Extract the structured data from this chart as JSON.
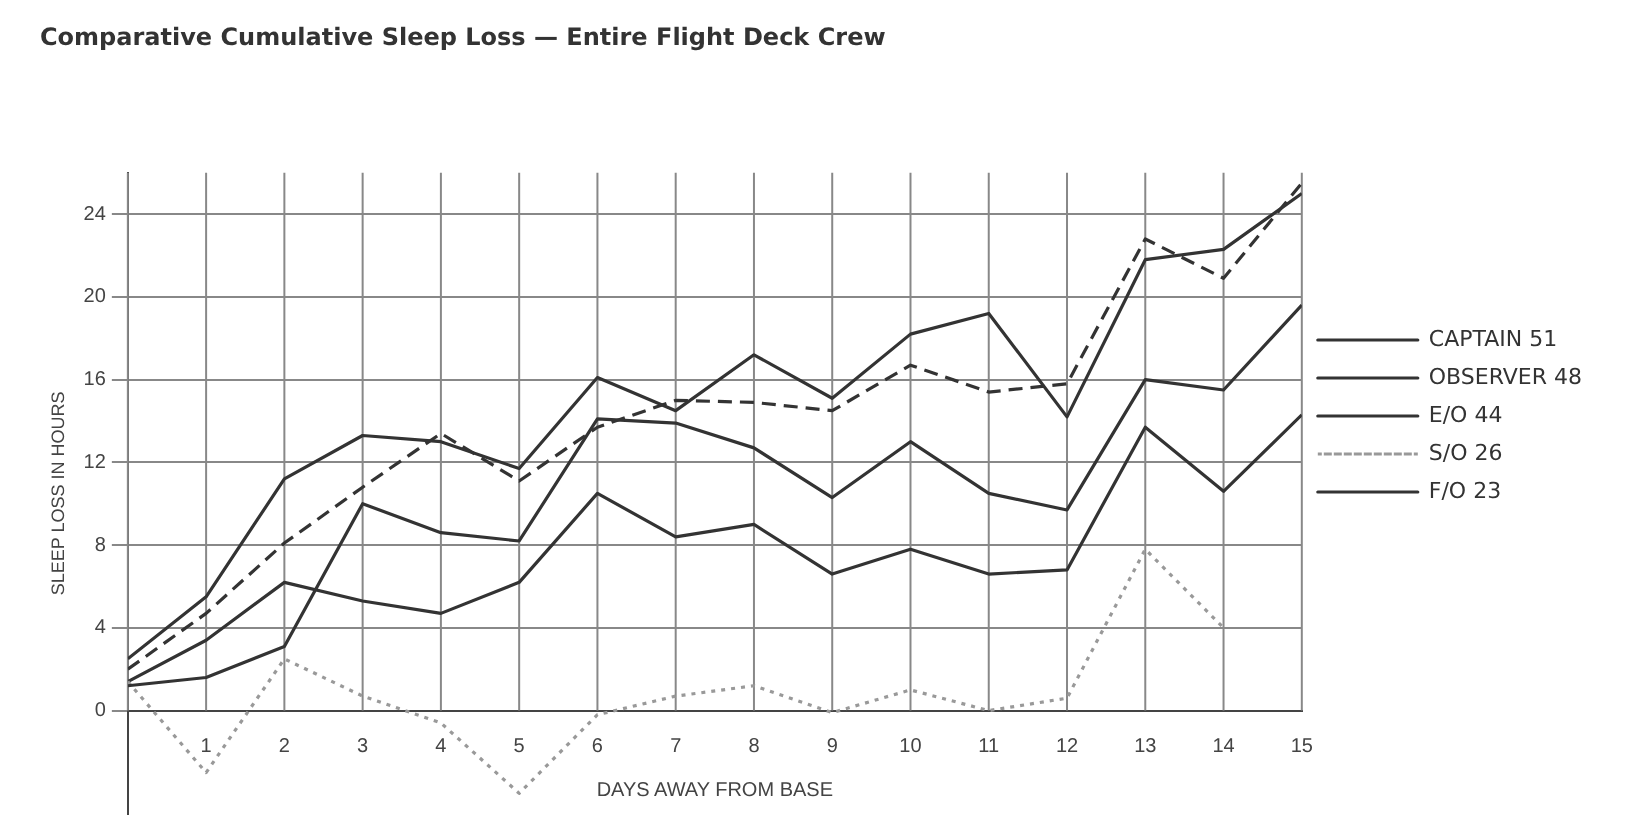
{
  "chart_data": {
    "type": "line",
    "title": "Comparative Cumulative Sleep Loss — Entire Flight Deck Crew",
    "xlabel": "DAYS AWAY FROM BASE",
    "ylabel": "SLEEP LOSS IN HOURS",
    "x": [
      0,
      1,
      2,
      3,
      4,
      5,
      6,
      7,
      8,
      9,
      10,
      11,
      12,
      13,
      14,
      15
    ],
    "xlim": [
      0,
      15
    ],
    "xticks": [
      {
        "value": 0,
        "label": null
      },
      1,
      2,
      3,
      4,
      5,
      6,
      7,
      8,
      9,
      10,
      11,
      12,
      13,
      14,
      15
    ],
    "ylim": [
      -5,
      26
    ],
    "yticks": [
      0,
      4,
      8,
      12,
      16,
      20,
      24
    ],
    "grid": true,
    "legend": "right",
    "marker": "none",
    "series": [
      {
        "name": "CAPTAIN 51",
        "color": "#333333",
        "line_style": "solid",
        "values": [
          2.5,
          5.5,
          11.2,
          13.3,
          13,
          11.7,
          16.1,
          14.5,
          17.2,
          15.1,
          18.2,
          19.2,
          14.2,
          21.8,
          22.3,
          25
        ]
      },
      {
        "name": "OBSERVER 48",
        "color": "#333333",
        "line_style": "dashed",
        "values": [
          2,
          4.7,
          8.1,
          10.8,
          13.4,
          11.1,
          13.7,
          15,
          14.9,
          14.5,
          16.7,
          15.4,
          15.8,
          22.8,
          20.9,
          25.5
        ]
      },
      {
        "name": "E/O 44",
        "color": "#333333",
        "line_style": "solid",
        "values": [
          1.2,
          1.6,
          3.1,
          10,
          8.6,
          8.2,
          14.1,
          13.9,
          12.7,
          10.3,
          13,
          10.5,
          9.7,
          16,
          15.5,
          19.6
        ]
      },
      {
        "name": "S/O 26",
        "color": "#999999",
        "line_style": "dotted",
        "values": [
          1.4,
          -3,
          2.5,
          0.7,
          -0.6,
          -4,
          -0.2,
          0.7,
          1.2,
          -0.1,
          1,
          0,
          0.6,
          7.8,
          4,
          null
        ]
      },
      {
        "name": "F/O 23",
        "color": "#333333",
        "line_style": "solid",
        "values": [
          1.4,
          3.4,
          6.2,
          5.3,
          4.7,
          6.2,
          10.5,
          8.4,
          9,
          6.6,
          7.8,
          6.6,
          6.8,
          13.7,
          10.6,
          14.3
        ]
      }
    ]
  }
}
